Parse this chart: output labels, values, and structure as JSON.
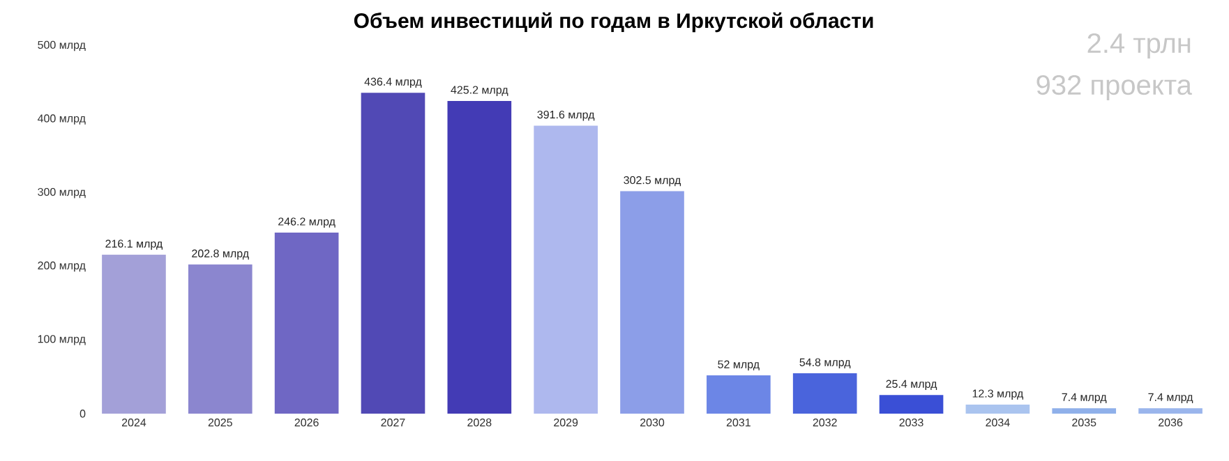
{
  "chart_data": {
    "type": "bar",
    "title": "Объем инвестиций по годам в Иркутской области",
    "categories": [
      "2024",
      "2025",
      "2026",
      "2027",
      "2028",
      "2029",
      "2030",
      "2031",
      "2032",
      "2033",
      "2034",
      "2035",
      "2036"
    ],
    "values": [
      216.1,
      202.8,
      246.2,
      436.4,
      425.2,
      391.6,
      302.5,
      52,
      54.8,
      25.4,
      12.3,
      7.4,
      7.4
    ],
    "value_labels": [
      "216.1 млрд",
      "202.8 млрд",
      "246.2 млрд",
      "436.4 млрд",
      "425.2 млрд",
      "391.6 млрд",
      "302.5 млрд",
      "52 млрд",
      "54.8 млрд",
      "25.4 млрд",
      "12.3 млрд",
      "7.4 млрд",
      "7.4 млрд"
    ],
    "colors": [
      "#a3a0d8",
      "#8b86cf",
      "#6f67c4",
      "#5149b5",
      "#433bb5",
      "#aeb8ee",
      "#8c9ee8",
      "#6c86e6",
      "#4a64dc",
      "#3a4fd6",
      "#aac4ef",
      "#8fb0ea",
      "#9ab5ec"
    ],
    "ylim": [
      0,
      500
    ],
    "yticks": [
      {
        "value": 0,
        "label": "0"
      },
      {
        "value": 100,
        "label": "100 млрд"
      },
      {
        "value": 200,
        "label": "200 млрд"
      },
      {
        "value": 300,
        "label": "300 млрд"
      },
      {
        "value": 400,
        "label": "400 млрд"
      },
      {
        "value": 500,
        "label": "500 млрд"
      }
    ],
    "grid": false,
    "annotations": [
      "2.4 трлн",
      "932 проекта"
    ]
  }
}
